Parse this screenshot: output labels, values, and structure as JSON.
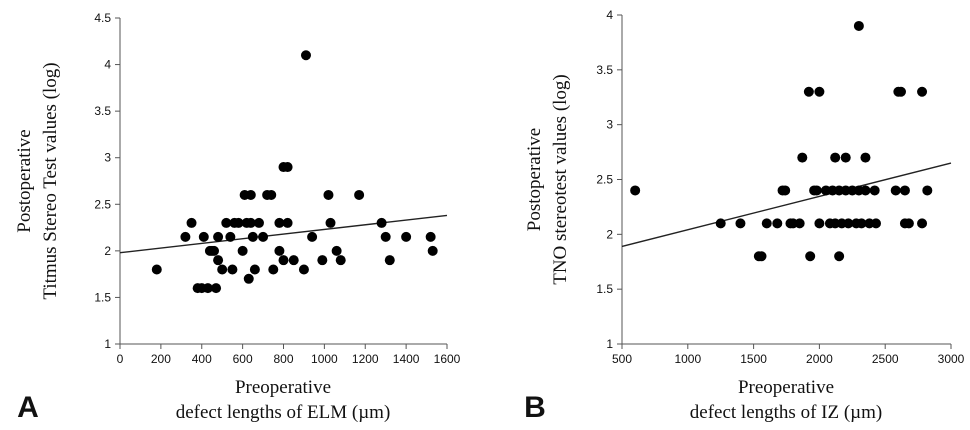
{
  "chart_data": [
    {
      "panel": "A",
      "type": "scatter",
      "xlabel_lines": [
        "Preoperative",
        "defect lengths of ELM (µm)"
      ],
      "ylabel_lines": [
        "Postoperative",
        "Titmus Stereo Test values (log)"
      ],
      "xlim": [
        0,
        1600
      ],
      "ylim": [
        1,
        4.5
      ],
      "xticks": [
        0,
        200,
        400,
        600,
        800,
        1000,
        1200,
        1400,
        1600
      ],
      "yticks": [
        1,
        1.5,
        2,
        2.5,
        3,
        3.5,
        4,
        4.5
      ],
      "ytick_labels": [
        "1",
        "1.5",
        "2",
        "2.5",
        "3",
        "3.5",
        "4",
        "4.5"
      ],
      "points": [
        [
          180,
          1.8
        ],
        [
          320,
          2.15
        ],
        [
          350,
          2.3
        ],
        [
          380,
          1.6
        ],
        [
          400,
          1.6
        ],
        [
          410,
          2.15
        ],
        [
          430,
          1.6
        ],
        [
          440,
          2.0
        ],
        [
          450,
          2.0
        ],
        [
          460,
          2.0
        ],
        [
          470,
          1.6
        ],
        [
          480,
          1.9
        ],
        [
          480,
          2.15
        ],
        [
          500,
          1.8
        ],
        [
          520,
          2.3
        ],
        [
          540,
          2.15
        ],
        [
          550,
          1.8
        ],
        [
          560,
          2.3
        ],
        [
          580,
          2.3
        ],
        [
          600,
          2.0
        ],
        [
          610,
          2.6
        ],
        [
          620,
          2.3
        ],
        [
          630,
          1.7
        ],
        [
          640,
          2.6
        ],
        [
          640,
          2.3
        ],
        [
          650,
          2.15
        ],
        [
          660,
          1.8
        ],
        [
          680,
          2.3
        ],
        [
          700,
          2.15
        ],
        [
          720,
          2.6
        ],
        [
          740,
          2.6
        ],
        [
          750,
          1.8
        ],
        [
          780,
          2.0
        ],
        [
          780,
          2.3
        ],
        [
          800,
          1.9
        ],
        [
          800,
          2.9
        ],
        [
          820,
          2.9
        ],
        [
          820,
          2.3
        ],
        [
          850,
          1.9
        ],
        [
          900,
          1.8
        ],
        [
          910,
          4.1
        ],
        [
          940,
          2.15
        ],
        [
          990,
          1.9
        ],
        [
          1020,
          2.6
        ],
        [
          1030,
          2.3
        ],
        [
          1060,
          2.0
        ],
        [
          1080,
          1.9
        ],
        [
          1170,
          2.6
        ],
        [
          1280,
          2.3
        ],
        [
          1300,
          2.15
        ],
        [
          1320,
          1.9
        ],
        [
          1400,
          2.15
        ],
        [
          1520,
          2.15
        ],
        [
          1530,
          2.0
        ]
      ],
      "trendline": {
        "x": [
          0,
          1600
        ],
        "y": [
          1.98,
          2.38
        ]
      }
    },
    {
      "panel": "B",
      "type": "scatter",
      "xlabel_lines": [
        "Preoperative",
        "defect lengths of IZ (µm)"
      ],
      "ylabel_lines": [
        "Postoperative",
        "TNO stereotest values (log)"
      ],
      "xlim": [
        500,
        3000
      ],
      "ylim": [
        1,
        4
      ],
      "xticks": [
        500,
        1000,
        1500,
        2000,
        2500,
        3000
      ],
      "yticks": [
        1,
        1.5,
        2,
        2.5,
        3,
        3.5,
        4
      ],
      "ytick_labels": [
        "1",
        "1.5",
        "2",
        "2.5",
        "3",
        "3.5",
        "4"
      ],
      "points": [
        [
          600,
          2.4
        ],
        [
          1250,
          2.1
        ],
        [
          1400,
          2.1
        ],
        [
          1540,
          1.8
        ],
        [
          1560,
          1.8
        ],
        [
          1600,
          2.1
        ],
        [
          1680,
          2.1
        ],
        [
          1720,
          2.4
        ],
        [
          1740,
          2.4
        ],
        [
          1780,
          2.1
        ],
        [
          1800,
          2.1
        ],
        [
          1850,
          2.1
        ],
        [
          1870,
          2.7
        ],
        [
          1920,
          3.3
        ],
        [
          1930,
          1.8
        ],
        [
          1960,
          2.4
        ],
        [
          1980,
          2.4
        ],
        [
          2000,
          3.3
        ],
        [
          2000,
          2.1
        ],
        [
          2050,
          2.4
        ],
        [
          2080,
          2.1
        ],
        [
          2100,
          2.4
        ],
        [
          2120,
          2.7
        ],
        [
          2120,
          2.1
        ],
        [
          2150,
          1.8
        ],
        [
          2150,
          2.4
        ],
        [
          2170,
          2.1
        ],
        [
          2200,
          2.4
        ],
        [
          2200,
          2.7
        ],
        [
          2220,
          2.1
        ],
        [
          2250,
          2.4
        ],
        [
          2280,
          2.1
        ],
        [
          2300,
          3.9
        ],
        [
          2300,
          2.4
        ],
        [
          2320,
          2.1
        ],
        [
          2350,
          2.7
        ],
        [
          2350,
          2.4
        ],
        [
          2380,
          2.1
        ],
        [
          2420,
          2.4
        ],
        [
          2430,
          2.1
        ],
        [
          2580,
          2.4
        ],
        [
          2600,
          3.3
        ],
        [
          2620,
          3.3
        ],
        [
          2650,
          2.4
        ],
        [
          2650,
          2.1
        ],
        [
          2680,
          2.1
        ],
        [
          2780,
          3.3
        ],
        [
          2780,
          2.1
        ],
        [
          2820,
          2.4
        ]
      ],
      "trendline": {
        "x": [
          500,
          3000
        ],
        "y": [
          1.89,
          2.65
        ]
      }
    }
  ]
}
